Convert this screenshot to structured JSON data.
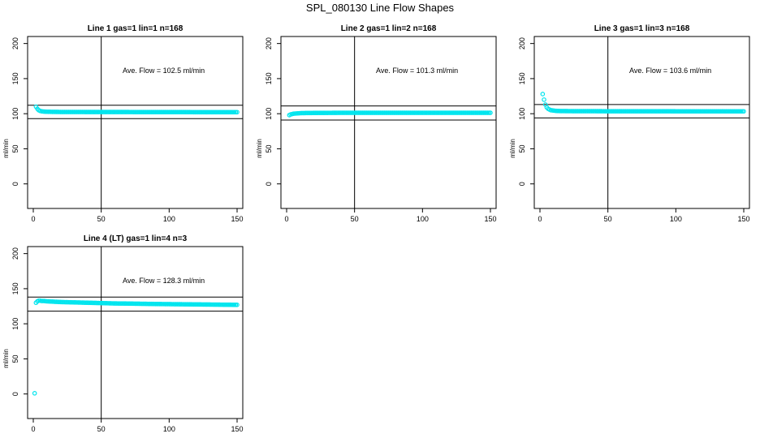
{
  "page_title": "SPL_080130  Line Flow Shapes",
  "point_color": "#00e5ee",
  "chart_data": [
    {
      "type": "scatter",
      "title": "Line 1 gas=1 lin=1 n=168",
      "ylabel": "ml/min",
      "xlabel": "",
      "xlim": [
        0,
        150
      ],
      "ylim": [
        -35,
        210
      ],
      "x_ticks": [
        "0",
        "50",
        "100",
        "150"
      ],
      "y_ticks": [
        "0",
        "50",
        "100",
        "150",
        "200"
      ],
      "annotation": "Ave. Flow =  102.5  ml/min",
      "hlines": [
        112,
        93
      ],
      "vline": 50,
      "series": [
        {
          "x": [
            2,
            3,
            4,
            5,
            6,
            8,
            10,
            15,
            20,
            30,
            40,
            50,
            60,
            70,
            80,
            90,
            100,
            110,
            120,
            130,
            140,
            150
          ],
          "y": [
            110,
            107,
            105,
            104,
            103.5,
            103,
            102.8,
            102.6,
            102.5,
            102.5,
            102.4,
            102.4,
            102.4,
            102.4,
            102.3,
            102.3,
            102.3,
            102.3,
            102.2,
            102.2,
            102.2,
            102.2
          ]
        }
      ]
    },
    {
      "type": "scatter",
      "title": "Line 2 gas=1 lin=2 n=168",
      "ylabel": "ml/min",
      "xlabel": "",
      "xlim": [
        0,
        150
      ],
      "ylim": [
        -35,
        210
      ],
      "x_ticks": [
        "0",
        "50",
        "100",
        "150"
      ],
      "y_ticks": [
        "0",
        "50",
        "100",
        "150",
        "200"
      ],
      "annotation": "Ave. Flow =  101.3  ml/min",
      "hlines": [
        111,
        91
      ],
      "vline": 50,
      "series": [
        {
          "x": [
            2,
            3,
            4,
            5,
            6,
            8,
            10,
            15,
            20,
            30,
            40,
            50,
            60,
            70,
            80,
            90,
            100,
            110,
            120,
            130,
            140,
            150
          ],
          "y": [
            98,
            99,
            99.5,
            100,
            100.2,
            100.5,
            100.8,
            101,
            101.1,
            101.2,
            101.3,
            101.3,
            101.3,
            101.3,
            101.3,
            101.3,
            101.3,
            101.3,
            101.3,
            101.3,
            101.3,
            101.3
          ]
        }
      ]
    },
    {
      "type": "scatter",
      "title": "Line 3 gas=1 lin=3 n=168",
      "ylabel": "ml/min",
      "xlabel": "",
      "xlim": [
        0,
        150
      ],
      "ylim": [
        -35,
        210
      ],
      "x_ticks": [
        "0",
        "50",
        "100",
        "150"
      ],
      "y_ticks": [
        "0",
        "50",
        "100",
        "150",
        "200"
      ],
      "annotation": "Ave. Flow =  103.6  ml/min",
      "hlines": [
        113,
        94
      ],
      "vline": 50,
      "series": [
        {
          "x": [
            2,
            3,
            4,
            5,
            6,
            7,
            8,
            10,
            12,
            15,
            20,
            30,
            40,
            50,
            60,
            70,
            80,
            90,
            100,
            110,
            120,
            130,
            140,
            150
          ],
          "y": [
            128,
            120,
            113,
            109,
            107,
            106,
            105,
            104.5,
            104,
            103.8,
            103.7,
            103.6,
            103.6,
            103.5,
            103.5,
            103.5,
            103.5,
            103.5,
            103.4,
            103.4,
            103.4,
            103.4,
            103.4,
            103.4
          ]
        }
      ]
    },
    {
      "type": "scatter",
      "title": "Line 4 (LT) gas=1 lin=4 n=3",
      "ylabel": "ml/min",
      "xlabel": "",
      "xlim": [
        0,
        150
      ],
      "ylim": [
        -35,
        210
      ],
      "x_ticks": [
        "0",
        "50",
        "100",
        "150"
      ],
      "y_ticks": [
        "0",
        "50",
        "100",
        "150",
        "200"
      ],
      "annotation": "Ave. Flow =  128.3  ml/min",
      "hlines": [
        138,
        118
      ],
      "vline": 50,
      "series": [
        {
          "x": [
            1,
            2,
            3,
            4,
            5,
            6,
            8,
            10,
            15,
            20,
            30,
            40,
            50,
            60,
            70,
            80,
            90,
            100,
            110,
            120,
            130,
            140,
            145,
            150
          ],
          "y": [
            1,
            130,
            132,
            133,
            133,
            132.5,
            132.5,
            132,
            131.5,
            131,
            130.5,
            130,
            129.5,
            129,
            128.8,
            128.5,
            128.2,
            128,
            127.8,
            127.6,
            127.4,
            127.2,
            127.1,
            127
          ]
        }
      ]
    }
  ]
}
